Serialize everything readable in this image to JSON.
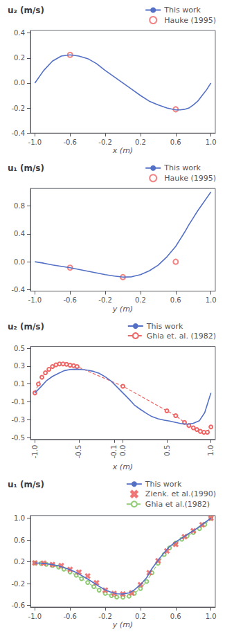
{
  "chart_data": [
    {
      "type": "line",
      "title": "u₂ (m/s)",
      "xlabel": "x (m)",
      "xlim": [
        -1.05,
        1.05
      ],
      "ylim": [
        -0.4,
        0.42
      ],
      "xticks": [
        {
          "value": -1.0,
          "label": "-1.0"
        },
        -0.6,
        -0.2,
        0.2,
        0.6,
        {
          "value": 1.0,
          "label": "1.0"
        }
      ],
      "yticks": [
        -0.4,
        -0.2,
        {
          "value": 0,
          "label": "0.0"
        },
        0.2,
        0.4
      ],
      "grid": false,
      "legend": "upper right",
      "series": [
        {
          "name": "This work",
          "type": "line",
          "marker": "none",
          "line_style": "solid",
          "x": [
            -1.0,
            -0.9,
            -0.8,
            -0.7,
            -0.6,
            -0.5,
            -0.4,
            -0.3,
            -0.2,
            -0.1,
            0.0,
            0.1,
            0.2,
            0.3,
            0.4,
            0.5,
            0.6,
            0.65,
            0.7,
            0.75,
            0.8,
            0.85,
            0.9,
            0.95,
            1.0
          ],
          "values": [
            0.0,
            0.1,
            0.175,
            0.215,
            0.225,
            0.215,
            0.195,
            0.155,
            0.1,
            0.05,
            0.0,
            -0.05,
            -0.1,
            -0.145,
            -0.175,
            -0.2,
            -0.215,
            -0.215,
            -0.21,
            -0.2,
            -0.175,
            -0.145,
            -0.1,
            -0.055,
            0.0
          ]
        },
        {
          "name": "Hauke (1995)",
          "type": "scatter",
          "marker": "open_circle",
          "line_style": "none",
          "x": [
            -0.6,
            0.6
          ],
          "values": [
            0.225,
            -0.21
          ]
        }
      ]
    },
    {
      "type": "line",
      "title": "u₁ (m/s)",
      "xlabel": "y (m)",
      "xlim": [
        -1.05,
        1.05
      ],
      "ylim": [
        -0.42,
        1.05
      ],
      "xticks": [
        {
          "value": -1.0,
          "label": "-1.0"
        },
        -0.6,
        -0.2,
        0.2,
        0.6,
        {
          "value": 1.0,
          "label": "1.0"
        }
      ],
      "yticks": [
        -0.4,
        {
          "value": 0,
          "label": "0.0"
        },
        0.4,
        0.8
      ],
      "grid": false,
      "legend": "upper right",
      "series": [
        {
          "name": "This work",
          "type": "line",
          "marker": "none",
          "line_style": "solid",
          "x": [
            -1.0,
            -0.9,
            -0.8,
            -0.7,
            -0.6,
            -0.5,
            -0.4,
            -0.3,
            -0.2,
            -0.1,
            0.0,
            0.1,
            0.2,
            0.3,
            0.4,
            0.5,
            0.6,
            0.65,
            0.7,
            0.75,
            0.8,
            0.85,
            0.9,
            0.95,
            1.0
          ],
          "values": [
            0.0,
            -0.02,
            -0.045,
            -0.065,
            -0.085,
            -0.11,
            -0.135,
            -0.16,
            -0.185,
            -0.205,
            -0.22,
            -0.215,
            -0.185,
            -0.13,
            -0.05,
            0.07,
            0.22,
            0.32,
            0.42,
            0.53,
            0.63,
            0.73,
            0.82,
            0.91,
            1.0
          ]
        },
        {
          "name": "Hauke (1995)",
          "type": "scatter",
          "marker": "open_circle",
          "line_style": "none",
          "x": [
            -0.6,
            0.0,
            0.6
          ],
          "values": [
            -0.085,
            -0.22,
            0.0
          ]
        }
      ]
    },
    {
      "type": "line",
      "title": "u₂ (m/s)",
      "xlabel": "x (m)",
      "xlim": [
        -1.05,
        1.05
      ],
      "ylim": [
        -0.52,
        0.52
      ],
      "xticks": [
        {
          "value": -1.0,
          "label": "-1.0"
        },
        -0.5,
        -0.1,
        {
          "value": 0,
          "label": "0.0"
        },
        0.5,
        {
          "value": 1.0,
          "label": "1.0"
        }
      ],
      "yticks": [
        -0.5,
        -0.3,
        -0.1,
        0.1,
        0.3,
        0.5
      ],
      "grid": false,
      "legend": "upper right",
      "series": [
        {
          "name": "This work",
          "type": "line",
          "marker": "none",
          "line_style": "solid",
          "x": [
            -1.0,
            -0.93,
            -0.87,
            -0.8,
            -0.73,
            -0.67,
            -0.6,
            -0.53,
            -0.47,
            -0.4,
            -0.33,
            -0.27,
            -0.2,
            -0.13,
            -0.07,
            0.0,
            0.07,
            0.13,
            0.2,
            0.27,
            0.33,
            0.4,
            0.47,
            0.53,
            0.6,
            0.67,
            0.73,
            0.8,
            0.87,
            0.93,
            1.0
          ],
          "values": [
            0.0,
            0.07,
            0.135,
            0.185,
            0.22,
            0.248,
            0.262,
            0.265,
            0.263,
            0.255,
            0.24,
            0.22,
            0.18,
            0.13,
            0.07,
            0.0,
            -0.07,
            -0.135,
            -0.185,
            -0.23,
            -0.265,
            -0.29,
            -0.305,
            -0.315,
            -0.33,
            -0.345,
            -0.35,
            -0.34,
            -0.31,
            -0.22,
            0.0
          ]
        },
        {
          "name": "Ghia et. al. (1982)",
          "type": "line",
          "marker": "open_circle",
          "line_style": "dashed",
          "x": [
            -1.0,
            -0.96,
            -0.92,
            -0.88,
            -0.84,
            -0.8,
            -0.76,
            -0.72,
            -0.68,
            -0.64,
            -0.6,
            -0.56,
            -0.52,
            -0.0,
            0.5,
            0.6,
            0.7,
            0.75,
            0.8,
            0.84,
            0.88,
            0.92,
            0.96,
            1.0
          ],
          "values": [
            0.0,
            0.1,
            0.175,
            0.225,
            0.265,
            0.295,
            0.315,
            0.325,
            0.325,
            0.32,
            0.31,
            0.305,
            0.295,
            0.075,
            -0.2,
            -0.255,
            -0.33,
            -0.365,
            -0.39,
            -0.41,
            -0.43,
            -0.44,
            -0.44,
            -0.38
          ]
        }
      ]
    },
    {
      "type": "line",
      "title": "u₁ (m/s)",
      "xlabel": "y (m)",
      "xlim": [
        -1.05,
        1.05
      ],
      "ylim": [
        -0.63,
        1.05
      ],
      "xticks": [
        {
          "value": -1.0,
          "label": "-1.0"
        },
        -0.6,
        -0.2,
        0.2,
        0.6,
        {
          "value": 1.0,
          "label": "1.0"
        }
      ],
      "yticks": [
        -0.6,
        -0.2,
        0.2,
        0.6,
        {
          "value": 1.0,
          "label": "1.0"
        }
      ],
      "grid": false,
      "legend": "upper right",
      "series": [
        {
          "name": "This work",
          "type": "line",
          "marker": "none",
          "line_style": "solid",
          "x": [
            -1.0,
            -0.93,
            -0.87,
            -0.8,
            -0.73,
            -0.67,
            -0.6,
            -0.53,
            -0.47,
            -0.4,
            -0.33,
            -0.27,
            -0.2,
            -0.13,
            -0.07,
            0.0,
            0.07,
            0.13,
            0.2,
            0.27,
            0.33,
            0.4,
            0.47,
            0.53,
            0.6,
            0.67,
            0.73,
            0.8,
            0.87,
            0.93,
            1.0
          ],
          "values": [
            0.18,
            0.175,
            0.165,
            0.15,
            0.125,
            0.095,
            0.055,
            0.005,
            -0.05,
            -0.115,
            -0.185,
            -0.25,
            -0.315,
            -0.36,
            -0.385,
            -0.39,
            -0.37,
            -0.315,
            -0.22,
            -0.09,
            0.075,
            0.23,
            0.37,
            0.48,
            0.565,
            0.635,
            0.7,
            0.77,
            0.845,
            0.92,
            1.0
          ]
        },
        {
          "name": "Zienk. et al.(1990)",
          "type": "scatter",
          "marker": "x",
          "line_style": "none",
          "x": [
            -1.0,
            -0.9,
            -0.8,
            -0.7,
            -0.6,
            -0.5,
            -0.4,
            -0.3,
            -0.2,
            -0.1,
            0.0,
            0.1,
            0.2,
            0.3,
            0.4,
            0.5,
            0.6,
            0.7,
            0.8,
            0.9,
            1.0
          ],
          "values": [
            0.18,
            0.175,
            0.15,
            0.13,
            0.06,
            0.01,
            -0.06,
            -0.185,
            -0.32,
            -0.38,
            -0.39,
            -0.37,
            -0.22,
            0.0,
            0.22,
            0.4,
            0.52,
            0.66,
            0.77,
            0.88,
            1.0
          ]
        },
        {
          "name": "Ghia et al.(1982)",
          "type": "line",
          "marker": "open_circle",
          "line_style": "dashed",
          "x": [
            -1.0,
            -0.93,
            -0.87,
            -0.8,
            -0.73,
            -0.67,
            -0.6,
            -0.53,
            -0.47,
            -0.4,
            -0.33,
            -0.27,
            -0.2,
            -0.13,
            -0.07,
            0.0,
            0.07,
            0.13,
            0.2,
            0.27,
            0.33,
            0.4,
            0.47,
            0.53,
            0.6,
            0.67,
            0.73,
            0.8,
            0.87,
            0.93,
            1.0
          ],
          "values": [
            0.18,
            0.17,
            0.155,
            0.135,
            0.105,
            0.065,
            0.015,
            -0.045,
            -0.11,
            -0.18,
            -0.255,
            -0.32,
            -0.38,
            -0.42,
            -0.445,
            -0.45,
            -0.43,
            -0.38,
            -0.29,
            -0.16,
            0.0,
            0.175,
            0.335,
            0.455,
            0.545,
            0.615,
            0.675,
            0.74,
            0.81,
            0.885,
            1.0
          ]
        }
      ]
    }
  ]
}
